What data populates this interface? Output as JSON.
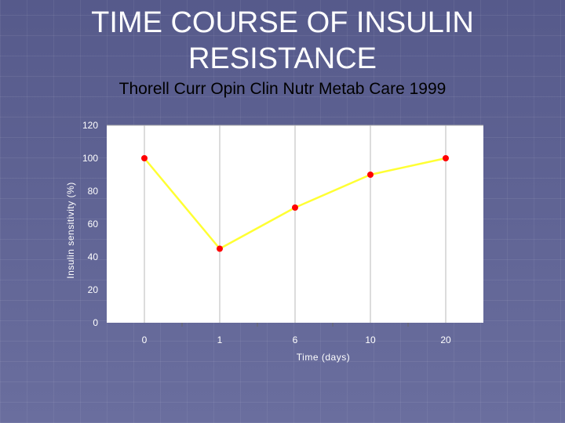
{
  "slide": {
    "title_line1": "TIME COURSE OF INSULIN",
    "title_line2": "RESISTANCE",
    "subtitle": "Thorell Curr Opin Clin Nutr Metab Care 1999"
  },
  "chart_data": {
    "type": "line",
    "title": "",
    "xlabel": "Time (days)",
    "ylabel": "Insulin sensitivity (%)",
    "categories": [
      "0",
      "1",
      "6",
      "10",
      "20"
    ],
    "series": [
      {
        "values": [
          100,
          45,
          70,
          90,
          100
        ],
        "line_color": "#ffff33",
        "marker_color": "#ff0000"
      }
    ],
    "ylim": [
      0,
      120
    ],
    "yticks": [
      "0",
      "20",
      "40",
      "60",
      "80",
      "100",
      "120"
    ],
    "grid": "vertical lines at categories, horizontal line at top",
    "legend": "none"
  }
}
